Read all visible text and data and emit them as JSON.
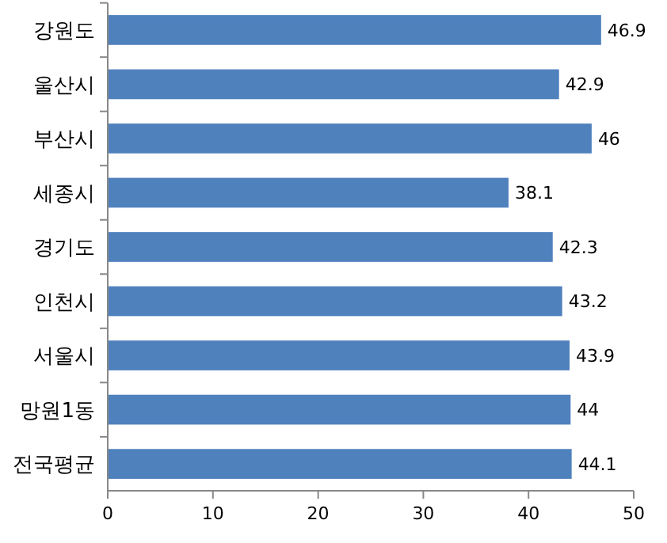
{
  "chart_data": {
    "type": "bar",
    "orientation": "horizontal",
    "categories": [
      "강원도",
      "울산시",
      "부산시",
      "세종시",
      "경기도",
      "인천시",
      "서울시",
      "망원1동",
      "전국평균"
    ],
    "values": [
      46.9,
      42.9,
      46,
      38.1,
      42.3,
      43.2,
      43.9,
      44,
      44.1
    ],
    "color": "#4f81bd",
    "xlim": [
      0,
      50
    ],
    "xticks": [
      0,
      10,
      20,
      30,
      40,
      50
    ],
    "grid": false,
    "data_labels": true
  }
}
